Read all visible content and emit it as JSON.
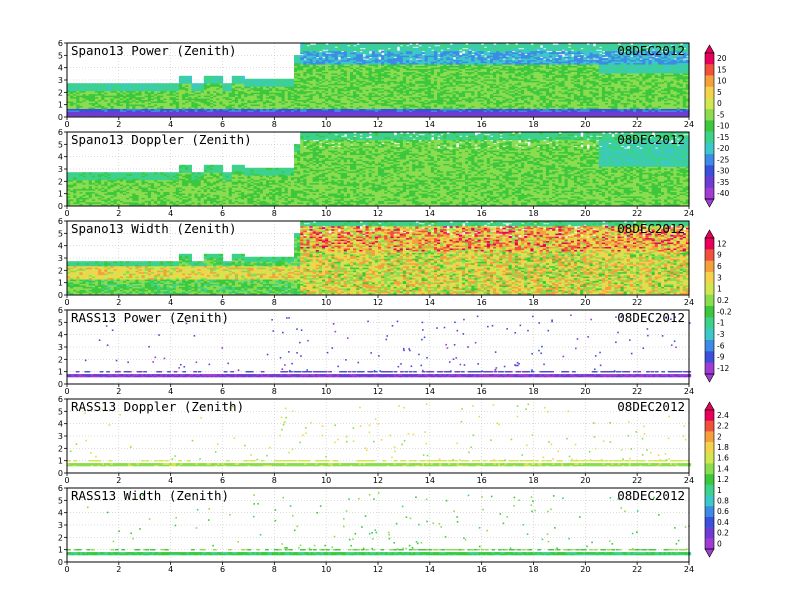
{
  "chart_data": {
    "type": "heatmap",
    "date": "08DEC2012",
    "x_ticks": [
      "0",
      "2",
      "4",
      "6",
      "8",
      "10",
      "12",
      "14",
      "16",
      "18",
      "20",
      "22",
      "24"
    ],
    "y_ticks": [
      "0",
      "1",
      "2",
      "3",
      "4",
      "5",
      "6"
    ],
    "xlim": [
      0,
      24
    ],
    "ylim": [
      0,
      6
    ],
    "panels": [
      {
        "title": "Spano13 Power (Zenith)",
        "date": "08DEC2012",
        "kind": "power"
      },
      {
        "title": "Spano13 Doppler (Zenith)",
        "date": "08DEC2012",
        "kind": "doppler"
      },
      {
        "title": "Spano13 Width (Zenith)",
        "date": "08DEC2012",
        "kind": "width"
      },
      {
        "title": "RASS13 Power (Zenith)",
        "date": "08DEC2012",
        "kind": "rass_power"
      },
      {
        "title": "RASS13 Doppler (Zenith)",
        "date": "08DEC2012",
        "kind": "rass_doppler"
      },
      {
        "title": "RASS13 Width (Zenith)",
        "date": "08DEC2012",
        "kind": "rass_width"
      }
    ],
    "colorbars": [
      {
        "labels": [
          "20",
          "15",
          "10",
          "5",
          "0",
          "-5",
          "-10",
          "-15",
          "-20",
          "-25",
          "-30",
          "-35",
          "-40"
        ],
        "colors": [
          "#e8005a",
          "#f0503c",
          "#f5a03c",
          "#f5d24b",
          "#d2e650",
          "#8cdc50",
          "#3cc83c",
          "#3cd28c",
          "#3cc8c8",
          "#3c8ce6",
          "#3c50dc",
          "#6e3cd2",
          "#a03cd2"
        ]
      },
      {
        "labels": [
          "12",
          "9",
          "6",
          "3",
          "1",
          "0.2",
          "-0.2",
          "-1",
          "-3",
          "-6",
          "-9",
          "-12"
        ],
        "colors": [
          "#e8005a",
          "#f0503c",
          "#f5a03c",
          "#f5d24b",
          "#d2e650",
          "#8cdc50",
          "#3cc83c",
          "#3cd28c",
          "#3cc8c8",
          "#3c8ce6",
          "#3c50dc",
          "#a03cd2"
        ]
      },
      {
        "labels": [
          "2.4",
          "2.2",
          "2",
          "1.8",
          "1.6",
          "1.4",
          "1.2",
          "1",
          "0.8",
          "0.6",
          "0.4",
          "0.2",
          "0"
        ],
        "colors": [
          "#e8005a",
          "#f0503c",
          "#f5a03c",
          "#f5d24b",
          "#d2e650",
          "#8cdc50",
          "#3cc83c",
          "#3cd28c",
          "#3cc8c8",
          "#3c8ce6",
          "#3c50dc",
          "#6e3cd2",
          "#a03cd2"
        ]
      }
    ]
  }
}
